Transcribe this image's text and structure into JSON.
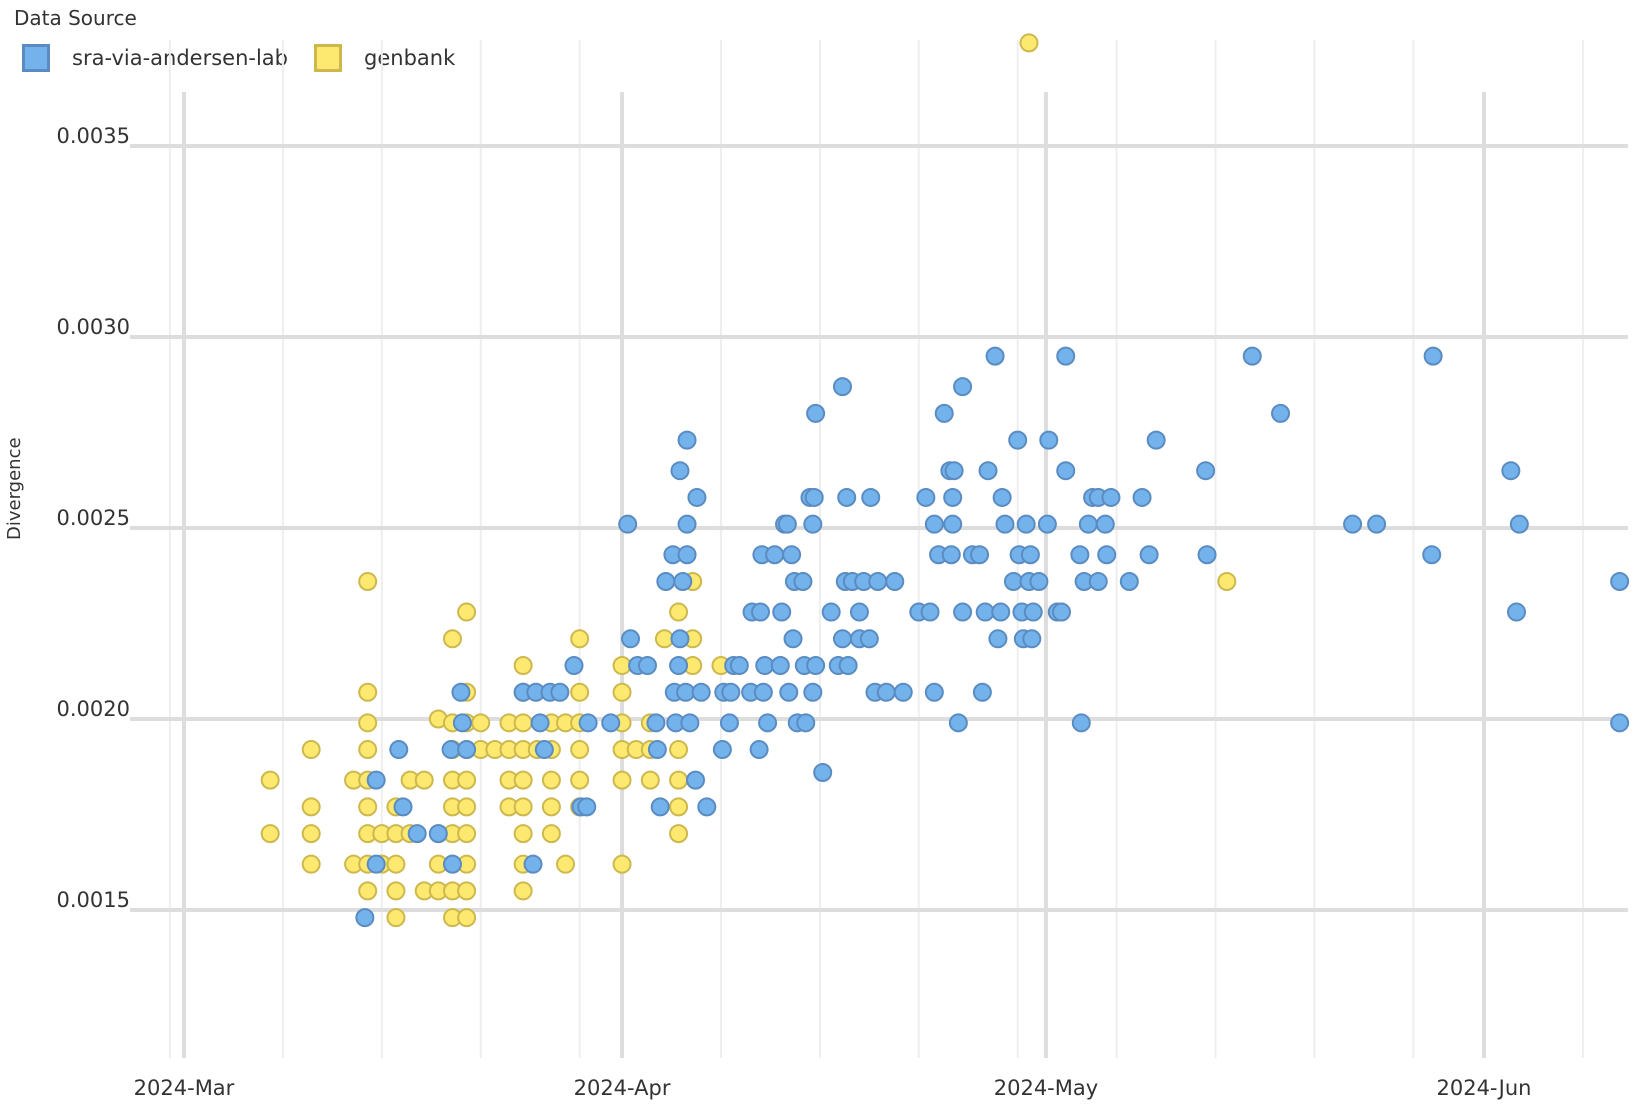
{
  "chart_data": {
    "type": "scatter",
    "title": "",
    "xlabel": "",
    "ylabel": "Divergence",
    "x_unit": "days since 2024-03-01",
    "xlim": [
      -1.5,
      101.5
    ],
    "ylim": [
      0.00112,
      0.00378
    ],
    "grid": true,
    "legend": {
      "title": "Data Source",
      "position": "top-left"
    },
    "x_ticks": [
      {
        "label": "2024-Mar",
        "value": 0
      },
      {
        "label": "2024-Apr",
        "value": 31
      },
      {
        "label": "2024-May",
        "value": 61
      },
      {
        "label": "2024-Jun",
        "value": 92
      }
    ],
    "x_minor": [
      -1,
      7,
      14,
      21,
      28,
      38,
      45,
      52,
      59,
      66,
      73,
      80,
      87,
      99
    ],
    "y_ticks": [
      {
        "label": "0.0015",
        "value": 0.0015
      },
      {
        "label": "0.0020",
        "value": 0.002
      },
      {
        "label": "0.0025",
        "value": 0.0025
      },
      {
        "label": "0.0030",
        "value": 0.003
      },
      {
        "label": "0.0035",
        "value": 0.0035
      }
    ],
    "series": [
      {
        "name": "genbank",
        "color": "#fde96f",
        "stroke": "#cdb84e",
        "points": [
          [
            6.1,
            0.00184
          ],
          [
            6.1,
            0.0017
          ],
          [
            9,
            0.00192
          ],
          [
            9,
            0.00177
          ],
          [
            9,
            0.0017
          ],
          [
            9,
            0.00162
          ],
          [
            12,
            0.00184
          ],
          [
            12,
            0.00162
          ],
          [
            13,
            0.00236
          ],
          [
            13,
            0.00207
          ],
          [
            13,
            0.00199
          ],
          [
            13,
            0.00192
          ],
          [
            13,
            0.00184
          ],
          [
            13,
            0.00177
          ],
          [
            13,
            0.0017
          ],
          [
            13,
            0.00162
          ],
          [
            13,
            0.00155
          ],
          [
            14,
            0.0017
          ],
          [
            14,
            0.00162
          ],
          [
            15,
            0.00177
          ],
          [
            15,
            0.0017
          ],
          [
            15,
            0.00162
          ],
          [
            15,
            0.00155
          ],
          [
            15,
            0.00148
          ],
          [
            16,
            0.00184
          ],
          [
            16,
            0.0017
          ],
          [
            17,
            0.00184
          ],
          [
            17,
            0.00155
          ],
          [
            18,
            0.002
          ],
          [
            18,
            0.0017
          ],
          [
            18,
            0.00162
          ],
          [
            18,
            0.00155
          ],
          [
            19,
            0.00221
          ],
          [
            19,
            0.00199
          ],
          [
            19,
            0.00192
          ],
          [
            19,
            0.00184
          ],
          [
            19,
            0.00177
          ],
          [
            19,
            0.0017
          ],
          [
            19,
            0.00162
          ],
          [
            19,
            0.00155
          ],
          [
            19,
            0.00148
          ],
          [
            20,
            0.00228
          ],
          [
            20,
            0.00207
          ],
          [
            20,
            0.00199
          ],
          [
            20,
            0.00192
          ],
          [
            20,
            0.00184
          ],
          [
            20,
            0.00177
          ],
          [
            20,
            0.0017
          ],
          [
            20,
            0.00162
          ],
          [
            20,
            0.00155
          ],
          [
            20,
            0.00148
          ],
          [
            21,
            0.00199
          ],
          [
            21,
            0.00192
          ],
          [
            22,
            0.00192
          ],
          [
            23,
            0.00199
          ],
          [
            23,
            0.00192
          ],
          [
            23,
            0.00184
          ],
          [
            23,
            0.00177
          ],
          [
            24,
            0.00214
          ],
          [
            24,
            0.00207
          ],
          [
            24,
            0.00199
          ],
          [
            24,
            0.00192
          ],
          [
            24,
            0.00184
          ],
          [
            24,
            0.00177
          ],
          [
            24,
            0.0017
          ],
          [
            24,
            0.00162
          ],
          [
            24,
            0.00155
          ],
          [
            25,
            0.00192
          ],
          [
            26,
            0.00199
          ],
          [
            26,
            0.00192
          ],
          [
            26,
            0.00184
          ],
          [
            26,
            0.00177
          ],
          [
            26,
            0.0017
          ],
          [
            27,
            0.00199
          ],
          [
            27,
            0.00162
          ],
          [
            28,
            0.00221
          ],
          [
            28,
            0.00207
          ],
          [
            28,
            0.00199
          ],
          [
            28,
            0.00192
          ],
          [
            28,
            0.00184
          ],
          [
            28,
            0.00177
          ],
          [
            31,
            0.00214
          ],
          [
            31,
            0.00207
          ],
          [
            31,
            0.00199
          ],
          [
            31,
            0.00192
          ],
          [
            31,
            0.00184
          ],
          [
            31,
            0.00162
          ],
          [
            32,
            0.00192
          ],
          [
            33,
            0.00199
          ],
          [
            33,
            0.00192
          ],
          [
            33,
            0.00184
          ],
          [
            34,
            0.00221
          ],
          [
            35,
            0.00228
          ],
          [
            35,
            0.00192
          ],
          [
            35,
            0.00184
          ],
          [
            35,
            0.00177
          ],
          [
            35,
            0.0017
          ],
          [
            36,
            0.00236
          ],
          [
            36,
            0.00221
          ],
          [
            36,
            0.00214
          ],
          [
            38,
            0.00214
          ],
          [
            73.8,
            0.00236
          ],
          [
            59.8,
            0.00377
          ]
        ]
      },
      {
        "name": "sra-via-andersen-lab",
        "color": "#74b2ec",
        "stroke": "#5a8cc2",
        "points": [
          [
            12.8,
            0.00148
          ],
          [
            13.6,
            0.00162
          ],
          [
            13.6,
            0.00184
          ],
          [
            15.5,
            0.00177
          ],
          [
            15.2,
            0.00192
          ],
          [
            16.5,
            0.0017
          ],
          [
            18,
            0.0017
          ],
          [
            18.9,
            0.00192
          ],
          [
            19,
            0.00162
          ],
          [
            19.7,
            0.00199
          ],
          [
            19.6,
            0.00207
          ],
          [
            20,
            0.00192
          ],
          [
            24,
            0.00207
          ],
          [
            24.7,
            0.00162
          ],
          [
            24.9,
            0.00207
          ],
          [
            25.2,
            0.00199
          ],
          [
            25.5,
            0.00192
          ],
          [
            25.9,
            0.00207
          ],
          [
            26.6,
            0.00207
          ],
          [
            27.6,
            0.00214
          ],
          [
            28.1,
            0.00177
          ],
          [
            28.5,
            0.00177
          ],
          [
            28.6,
            0.00199
          ],
          [
            30.2,
            0.00199
          ],
          [
            31.4,
            0.00251
          ],
          [
            31.6,
            0.00221
          ],
          [
            32.1,
            0.00214
          ],
          [
            32.8,
            0.00214
          ],
          [
            33.4,
            0.00199
          ],
          [
            33.5,
            0.00192
          ],
          [
            33.7,
            0.00177
          ],
          [
            34.1,
            0.00236
          ],
          [
            34.6,
            0.00243
          ],
          [
            34.7,
            0.00207
          ],
          [
            34.8,
            0.00199
          ],
          [
            35,
            0.00214
          ],
          [
            35.1,
            0.00221
          ],
          [
            35.1,
            0.00265
          ],
          [
            35.3,
            0.00236
          ],
          [
            35.5,
            0.00207
          ],
          [
            35.6,
            0.00251
          ],
          [
            35.6,
            0.00273
          ],
          [
            35.6,
            0.00243
          ],
          [
            35.8,
            0.00199
          ],
          [
            36.2,
            0.00184
          ],
          [
            36.3,
            0.00258
          ],
          [
            36.6,
            0.00207
          ],
          [
            37,
            0.00177
          ],
          [
            38.1,
            0.00192
          ],
          [
            38.2,
            0.00207
          ],
          [
            38.6,
            0.00199
          ],
          [
            38.7,
            0.00207
          ],
          [
            38.9,
            0.00214
          ],
          [
            39.3,
            0.00214
          ],
          [
            40.1,
            0.00207
          ],
          [
            40.2,
            0.00228
          ],
          [
            40.7,
            0.00192
          ],
          [
            40.8,
            0.00228
          ],
          [
            40.9,
            0.00243
          ],
          [
            41,
            0.00207
          ],
          [
            41.1,
            0.00214
          ],
          [
            41.3,
            0.00199
          ],
          [
            41.8,
            0.00243
          ],
          [
            42.2,
            0.00214
          ],
          [
            42.3,
            0.00228
          ],
          [
            42.5,
            0.00251
          ],
          [
            42.7,
            0.00251
          ],
          [
            42.8,
            0.00207
          ],
          [
            43,
            0.00243
          ],
          [
            43.1,
            0.00221
          ],
          [
            43.2,
            0.00236
          ],
          [
            43.4,
            0.00199
          ],
          [
            43.8,
            0.00236
          ],
          [
            43.9,
            0.00214
          ],
          [
            44,
            0.00199
          ],
          [
            44.3,
            0.00258
          ],
          [
            44.5,
            0.00251
          ],
          [
            44.5,
            0.00207
          ],
          [
            44.6,
            0.00258
          ],
          [
            44.7,
            0.0028
          ],
          [
            44.7,
            0.00214
          ],
          [
            45.2,
            0.00186
          ],
          [
            45.8,
            0.00228
          ],
          [
            46.3,
            0.00214
          ],
          [
            46.6,
            0.00221
          ],
          [
            46.6,
            0.00287
          ],
          [
            46.8,
            0.00236
          ],
          [
            46.9,
            0.00258
          ],
          [
            47,
            0.00214
          ],
          [
            47.3,
            0.00236
          ],
          [
            47.8,
            0.00221
          ],
          [
            47.8,
            0.00228
          ],
          [
            48.1,
            0.00236
          ],
          [
            48.5,
            0.00221
          ],
          [
            48.6,
            0.00258
          ],
          [
            48.9,
            0.00207
          ],
          [
            49.1,
            0.00236
          ],
          [
            49.7,
            0.00207
          ],
          [
            50.3,
            0.00236
          ],
          [
            50.9,
            0.00207
          ],
          [
            52,
            0.00228
          ],
          [
            52.5,
            0.00258
          ],
          [
            52.8,
            0.00228
          ],
          [
            53.1,
            0.00251
          ],
          [
            53.1,
            0.00207
          ],
          [
            53.4,
            0.00243
          ],
          [
            53.8,
            0.0028
          ],
          [
            54.2,
            0.00265
          ],
          [
            54.3,
            0.00243
          ],
          [
            54.4,
            0.00258
          ],
          [
            54.4,
            0.00251
          ],
          [
            54.5,
            0.00265
          ],
          [
            54.8,
            0.00199
          ],
          [
            55.1,
            0.00228
          ],
          [
            55.1,
            0.00287
          ],
          [
            55.8,
            0.00243
          ],
          [
            56.3,
            0.00243
          ],
          [
            56.5,
            0.00207
          ],
          [
            56.7,
            0.00228
          ],
          [
            56.9,
            0.00265
          ],
          [
            57.4,
            0.00295
          ],
          [
            57.6,
            0.00221
          ],
          [
            57.8,
            0.00228
          ],
          [
            57.9,
            0.00258
          ],
          [
            58.1,
            0.00251
          ],
          [
            58.7,
            0.00236
          ],
          [
            59,
            0.00273
          ],
          [
            59.1,
            0.00243
          ],
          [
            59.3,
            0.00228
          ],
          [
            59.4,
            0.00221
          ],
          [
            59.6,
            0.00251
          ],
          [
            59.8,
            0.00236
          ],
          [
            59.9,
            0.00243
          ],
          [
            60,
            0.00221
          ],
          [
            60.1,
            0.00228
          ],
          [
            60.5,
            0.00236
          ],
          [
            61.1,
            0.00251
          ],
          [
            61.2,
            0.00273
          ],
          [
            61.8,
            0.00228
          ],
          [
            62.1,
            0.00228
          ],
          [
            62.4,
            0.00295
          ],
          [
            62.4,
            0.00265
          ],
          [
            63.4,
            0.00243
          ],
          [
            63.5,
            0.00199
          ],
          [
            63.7,
            0.00236
          ],
          [
            64,
            0.00251
          ],
          [
            64.3,
            0.00258
          ],
          [
            64.7,
            0.00236
          ],
          [
            64.7,
            0.00258
          ],
          [
            65.2,
            0.00251
          ],
          [
            65.3,
            0.00243
          ],
          [
            65.6,
            0.00258
          ],
          [
            66.9,
            0.00236
          ],
          [
            67.8,
            0.00258
          ],
          [
            68.3,
            0.00243
          ],
          [
            68.8,
            0.00273
          ],
          [
            72.3,
            0.00265
          ],
          [
            72.4,
            0.00243
          ],
          [
            75.6,
            0.00295
          ],
          [
            77.6,
            0.0028
          ],
          [
            82.7,
            0.00251
          ],
          [
            84.4,
            0.00251
          ],
          [
            88.3,
            0.00243
          ],
          [
            88.4,
            0.00295
          ],
          [
            93.9,
            0.00265
          ],
          [
            94.3,
            0.00228
          ],
          [
            94.5,
            0.00251
          ],
          [
            101.6,
            0.00236
          ],
          [
            101.6,
            0.00199
          ]
        ]
      }
    ]
  }
}
